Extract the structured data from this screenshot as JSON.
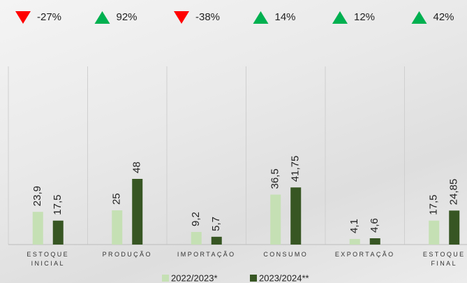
{
  "chart_data": {
    "type": "bar",
    "categories": [
      "ESTOQUE INICIAL",
      "PRODUÇÃO",
      "IMPORTAÇÃO",
      "CONSUMO",
      "EXPORTAÇÃO",
      "ESTOQUE FINAL"
    ],
    "series": [
      {
        "name": "2022/2023*",
        "color": "#c5e0b4",
        "values": [
          23.9,
          25,
          9.2,
          36.5,
          4.1,
          17.5
        ],
        "value_labels": [
          "23,9",
          "25",
          "9,2",
          "36,5",
          "4,1",
          "17,5"
        ]
      },
      {
        "name": "2023/2024**",
        "color": "#375623",
        "values": [
          17.5,
          48,
          5.7,
          41.75,
          4.6,
          24.85
        ],
        "value_labels": [
          "17,5",
          "48",
          "5,7",
          "41,75",
          "4,6",
          "24,85"
        ]
      }
    ],
    "changes": {
      "values": [
        -27,
        92,
        -38,
        14,
        12,
        42
      ],
      "value_labels": [
        "-27%",
        "92%",
        "-38%",
        "14%",
        "12%",
        "42%"
      ],
      "up_color": "#00b050",
      "down_color": "#ff0000"
    }
  }
}
